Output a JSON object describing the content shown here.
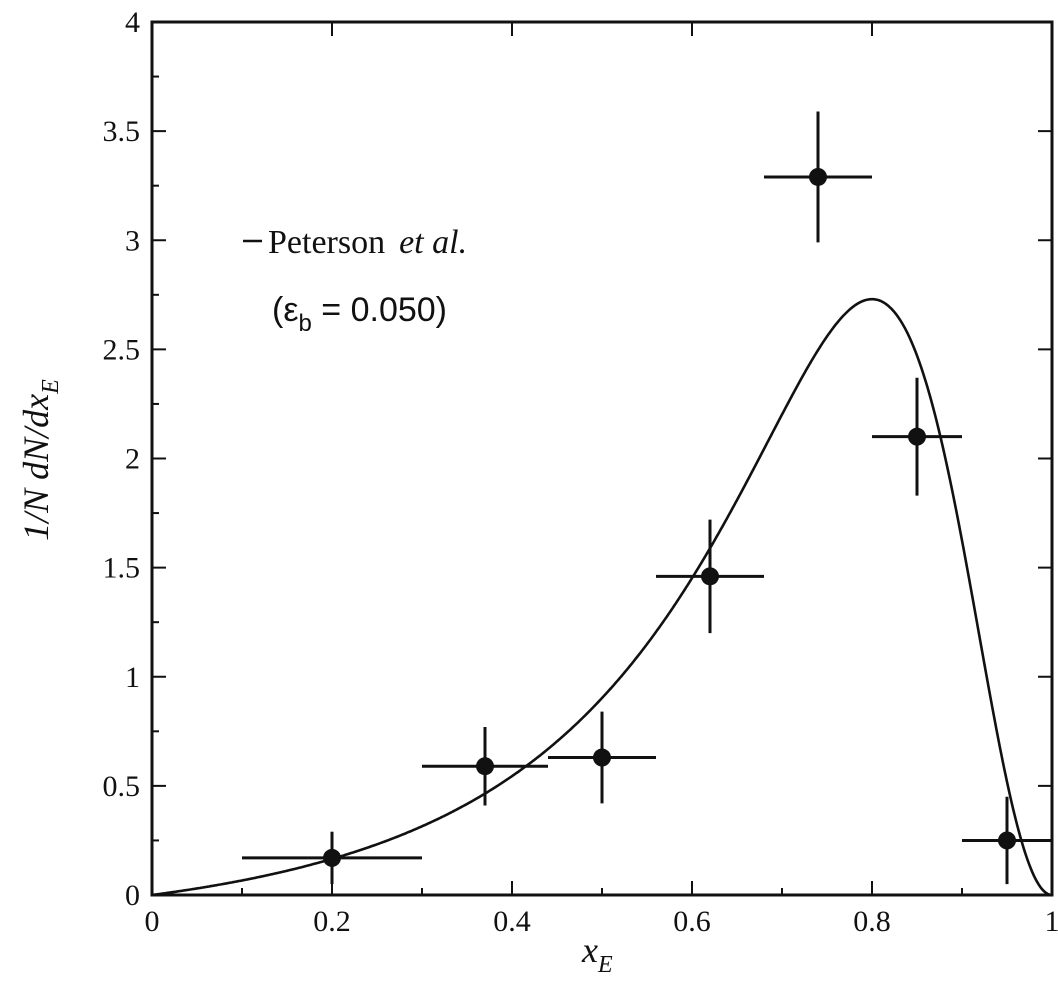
{
  "chart_data": {
    "type": "scatter",
    "xlabel": "x",
    "xlabel_sub": "E",
    "ylabel": "1/N dN/dx",
    "ylabel_sub": "E",
    "xlim": [
      0,
      1
    ],
    "ylim": [
      0,
      4
    ],
    "grid": false,
    "x_ticks": [
      0,
      0.2,
      0.4,
      0.6,
      0.8,
      1
    ],
    "x_tick_labels": [
      "0",
      "0.2",
      "0.4",
      "0.6",
      "0.8",
      "1"
    ],
    "y_ticks": [
      0,
      0.5,
      1,
      1.5,
      2,
      2.5,
      3,
      3.5,
      4
    ],
    "y_tick_labels": [
      "0",
      "0.5",
      "1",
      "1.5",
      "2",
      "2.5",
      "3",
      "3.5",
      "4"
    ],
    "legend": {
      "placement": "upper-left",
      "line1_name": "Peterson",
      "line1_italic": "et al.",
      "line2_open": "(ε",
      "line2_sub": "b",
      "line2_rest": " = 0.050)"
    },
    "series": [
      {
        "type": "points_with_errors",
        "points": [
          {
            "x": 0.2,
            "y": 0.17,
            "xerr": 0.1,
            "yerr": 0.12
          },
          {
            "x": 0.37,
            "y": 0.59,
            "xerr": 0.07,
            "yerr": 0.18
          },
          {
            "x": 0.5,
            "y": 0.63,
            "xerr": 0.06,
            "yerr": 0.21
          },
          {
            "x": 0.62,
            "y": 1.46,
            "xerr": 0.06,
            "yerr": 0.26
          },
          {
            "x": 0.74,
            "y": 3.29,
            "xerr": 0.06,
            "yerr": 0.3
          },
          {
            "x": 0.85,
            "y": 2.1,
            "xerr": 0.05,
            "yerr": 0.27
          },
          {
            "x": 0.95,
            "y": 0.25,
            "xerr": 0.05,
            "yerr": 0.2
          }
        ]
      },
      {
        "type": "curve",
        "function": "peterson",
        "epsilon": 0.05,
        "peak": 2.73
      }
    ]
  }
}
